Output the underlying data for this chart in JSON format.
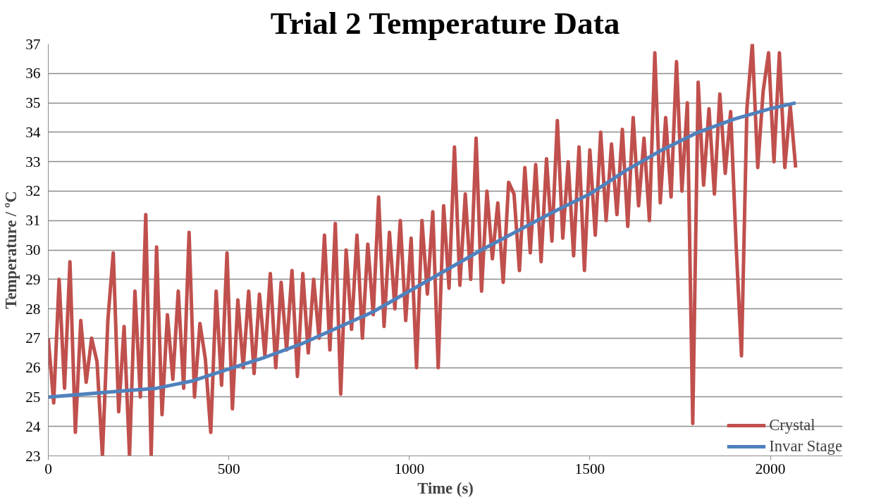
{
  "chart_data": {
    "type": "line",
    "title": "Trial 2 Temperature Data",
    "xlabel": "Time (s)",
    "ylabel": "Temperature / ºC",
    "xlim": [
      0,
      2200
    ],
    "xticks": [
      0,
      500,
      1000,
      1500,
      2000
    ],
    "ylim": [
      23,
      37
    ],
    "yticks": [
      23,
      24,
      25,
      26,
      27,
      28,
      29,
      30,
      31,
      32,
      33,
      34,
      35,
      36,
      37
    ],
    "grid": "y",
    "legend": "bottom right",
    "marker": "none",
    "line_style": "solid",
    "series": [
      {
        "name": "Crystal",
        "color": "#c0504d",
        "x": [
          0,
          15,
          30,
          45,
          60,
          75,
          90,
          105,
          120,
          135,
          150,
          165,
          180,
          195,
          210,
          225,
          240,
          255,
          270,
          285,
          300,
          315,
          330,
          345,
          360,
          375,
          390,
          405,
          420,
          435,
          450,
          465,
          480,
          495,
          510,
          525,
          540,
          555,
          570,
          585,
          600,
          615,
          630,
          645,
          660,
          675,
          690,
          705,
          720,
          735,
          750,
          765,
          780,
          795,
          810,
          825,
          840,
          855,
          870,
          885,
          900,
          915,
          930,
          945,
          960,
          975,
          990,
          1005,
          1020,
          1035,
          1050,
          1065,
          1080,
          1095,
          1110,
          1125,
          1140,
          1155,
          1170,
          1185,
          1200,
          1215,
          1230,
          1245,
          1260,
          1275,
          1290,
          1305,
          1320,
          1335,
          1350,
          1365,
          1380,
          1395,
          1410,
          1425,
          1440,
          1455,
          1470,
          1485,
          1500,
          1515,
          1530,
          1545,
          1560,
          1575,
          1590,
          1605,
          1620,
          1635,
          1650,
          1665,
          1680,
          1695,
          1710,
          1725,
          1740,
          1755,
          1770,
          1785,
          1800,
          1815,
          1830,
          1845,
          1860,
          1875,
          1890,
          1905,
          1920,
          1935,
          1950,
          1965,
          1980,
          1995,
          2010,
          2025,
          2040,
          2055,
          2070
        ],
        "values": [
          27.0,
          24.8,
          29.0,
          25.3,
          29.6,
          23.8,
          27.6,
          25.5,
          27.0,
          26.2,
          23.0,
          27.6,
          29.9,
          24.5,
          27.4,
          23.0,
          28.6,
          25.0,
          31.2,
          23.0,
          30.1,
          24.4,
          27.8,
          25.6,
          28.6,
          25.3,
          30.6,
          25.0,
          27.5,
          26.3,
          23.8,
          28.6,
          25.4,
          29.9,
          24.6,
          28.3,
          26.0,
          28.6,
          25.8,
          28.5,
          26.4,
          29.2,
          26.0,
          28.9,
          26.6,
          29.3,
          25.7,
          29.2,
          26.5,
          29.0,
          27.0,
          30.5,
          26.6,
          30.9,
          25.1,
          30.0,
          27.3,
          30.5,
          27.0,
          30.2,
          27.8,
          31.8,
          27.4,
          30.6,
          28.0,
          31.0,
          27.6,
          30.4,
          26.0,
          31.0,
          28.5,
          31.3,
          26.0,
          31.5,
          28.7,
          33.5,
          28.8,
          31.9,
          29.0,
          33.8,
          28.6,
          32.0,
          29.7,
          31.6,
          28.9,
          32.3,
          31.9,
          29.3,
          32.8,
          29.9,
          32.9,
          29.6,
          33.1,
          30.3,
          34.4,
          30.4,
          33.0,
          29.8,
          33.5,
          29.3,
          33.4,
          30.5,
          34.0,
          31.0,
          33.6,
          31.2,
          34.1,
          30.8,
          34.5,
          31.5,
          33.8,
          31.0,
          36.7,
          31.6,
          34.5,
          31.8,
          36.4,
          32.0,
          35.0,
          24.1,
          35.7,
          32.2,
          34.8,
          31.9,
          35.3,
          32.6,
          34.7,
          30.2,
          26.4,
          34.8,
          37.0,
          32.8,
          35.4,
          36.7,
          33.0,
          36.7,
          32.8,
          34.9,
          32.8
        ]
      },
      {
        "name": "Invar Stage",
        "color": "#4f81bd",
        "x": [
          0,
          100,
          200,
          300,
          400,
          500,
          600,
          700,
          800,
          900,
          1000,
          1100,
          1200,
          1300,
          1400,
          1500,
          1600,
          1700,
          1800,
          1900,
          2000,
          2070
        ],
        "values": [
          25.0,
          25.1,
          25.2,
          25.3,
          25.55,
          25.95,
          26.35,
          26.8,
          27.35,
          27.9,
          28.6,
          29.3,
          30.0,
          30.65,
          31.3,
          31.9,
          32.7,
          33.4,
          34.0,
          34.45,
          34.8,
          35.0
        ]
      }
    ]
  }
}
